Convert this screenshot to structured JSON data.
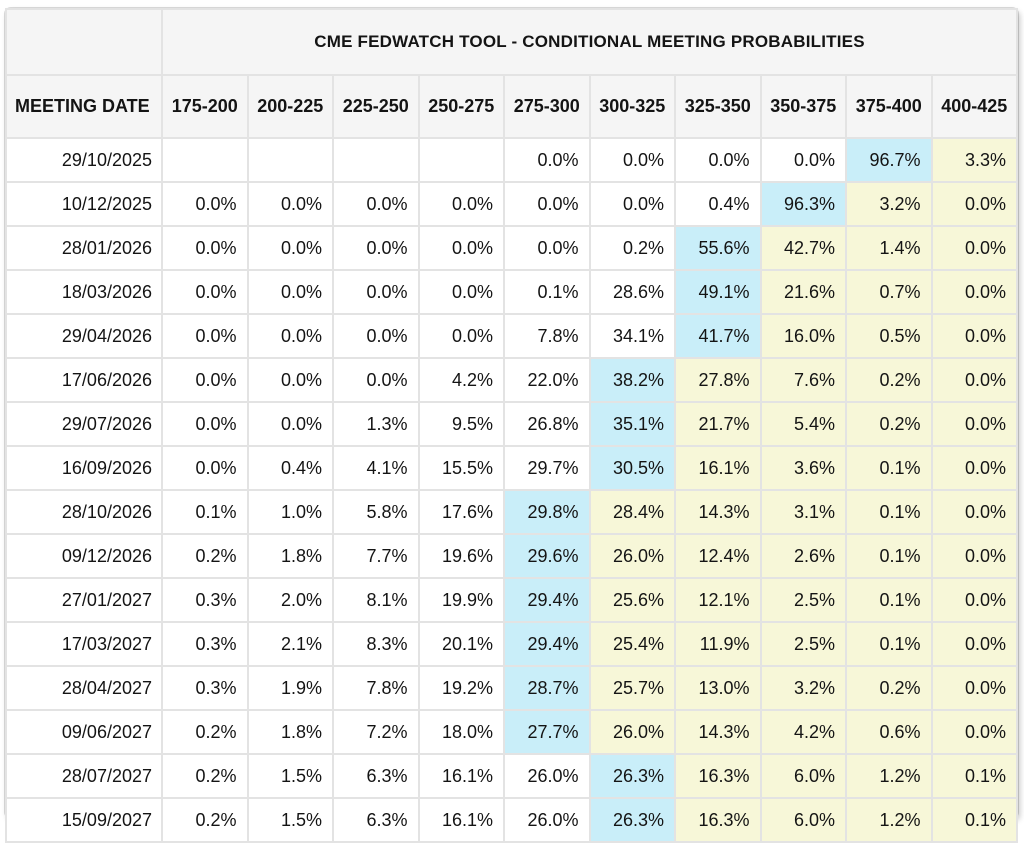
{
  "colors": {
    "header_bg": "#f5f5f5",
    "cell_bg": "#ffffff",
    "highlight_blue": "#c9eef9",
    "highlight_yellow": "#f7f7d8",
    "border": "#e3e3e3",
    "text": "#141414"
  },
  "chart_data": {
    "type": "table",
    "title": "CME FEDWATCH TOOL - CONDITIONAL MEETING PROBABILITIES",
    "date_column_header": "MEETING DATE",
    "rate_bin_headers": [
      "175-200",
      "200-225",
      "225-250",
      "250-275",
      "275-300",
      "300-325",
      "325-350",
      "350-375",
      "375-400",
      "400-425"
    ],
    "highlight_key": {
      "b": "blue",
      "y": "yellow",
      "": "none"
    },
    "rows": [
      {
        "date": "29/10/2025",
        "values": [
          "",
          "",
          "",
          "",
          "0.0%",
          "0.0%",
          "0.0%",
          "0.0%",
          "96.7%",
          "3.3%"
        ],
        "styles": [
          "",
          "",
          "",
          "",
          "",
          "",
          "",
          "",
          "b",
          "y"
        ]
      },
      {
        "date": "10/12/2025",
        "values": [
          "0.0%",
          "0.0%",
          "0.0%",
          "0.0%",
          "0.0%",
          "0.0%",
          "0.4%",
          "96.3%",
          "3.2%",
          "0.0%"
        ],
        "styles": [
          "",
          "",
          "",
          "",
          "",
          "",
          "",
          "b",
          "y",
          "y"
        ]
      },
      {
        "date": "28/01/2026",
        "values": [
          "0.0%",
          "0.0%",
          "0.0%",
          "0.0%",
          "0.0%",
          "0.2%",
          "55.6%",
          "42.7%",
          "1.4%",
          "0.0%"
        ],
        "styles": [
          "",
          "",
          "",
          "",
          "",
          "",
          "b",
          "y",
          "y",
          "y"
        ]
      },
      {
        "date": "18/03/2026",
        "values": [
          "0.0%",
          "0.0%",
          "0.0%",
          "0.0%",
          "0.1%",
          "28.6%",
          "49.1%",
          "21.6%",
          "0.7%",
          "0.0%"
        ],
        "styles": [
          "",
          "",
          "",
          "",
          "",
          "",
          "b",
          "y",
          "y",
          "y"
        ]
      },
      {
        "date": "29/04/2026",
        "values": [
          "0.0%",
          "0.0%",
          "0.0%",
          "0.0%",
          "7.8%",
          "34.1%",
          "41.7%",
          "16.0%",
          "0.5%",
          "0.0%"
        ],
        "styles": [
          "",
          "",
          "",
          "",
          "",
          "",
          "b",
          "y",
          "y",
          "y"
        ]
      },
      {
        "date": "17/06/2026",
        "values": [
          "0.0%",
          "0.0%",
          "0.0%",
          "4.2%",
          "22.0%",
          "38.2%",
          "27.8%",
          "7.6%",
          "0.2%",
          "0.0%"
        ],
        "styles": [
          "",
          "",
          "",
          "",
          "",
          "b",
          "y",
          "y",
          "y",
          "y"
        ]
      },
      {
        "date": "29/07/2026",
        "values": [
          "0.0%",
          "0.0%",
          "1.3%",
          "9.5%",
          "26.8%",
          "35.1%",
          "21.7%",
          "5.4%",
          "0.2%",
          "0.0%"
        ],
        "styles": [
          "",
          "",
          "",
          "",
          "",
          "b",
          "y",
          "y",
          "y",
          "y"
        ]
      },
      {
        "date": "16/09/2026",
        "values": [
          "0.0%",
          "0.4%",
          "4.1%",
          "15.5%",
          "29.7%",
          "30.5%",
          "16.1%",
          "3.6%",
          "0.1%",
          "0.0%"
        ],
        "styles": [
          "",
          "",
          "",
          "",
          "",
          "b",
          "y",
          "y",
          "y",
          "y"
        ]
      },
      {
        "date": "28/10/2026",
        "values": [
          "0.1%",
          "1.0%",
          "5.8%",
          "17.6%",
          "29.8%",
          "28.4%",
          "14.3%",
          "3.1%",
          "0.1%",
          "0.0%"
        ],
        "styles": [
          "",
          "",
          "",
          "",
          "b",
          "y",
          "y",
          "y",
          "y",
          "y"
        ]
      },
      {
        "date": "09/12/2026",
        "values": [
          "0.2%",
          "1.8%",
          "7.7%",
          "19.6%",
          "29.6%",
          "26.0%",
          "12.4%",
          "2.6%",
          "0.1%",
          "0.0%"
        ],
        "styles": [
          "",
          "",
          "",
          "",
          "b",
          "y",
          "y",
          "y",
          "y",
          "y"
        ]
      },
      {
        "date": "27/01/2027",
        "values": [
          "0.3%",
          "2.0%",
          "8.1%",
          "19.9%",
          "29.4%",
          "25.6%",
          "12.1%",
          "2.5%",
          "0.1%",
          "0.0%"
        ],
        "styles": [
          "",
          "",
          "",
          "",
          "b",
          "y",
          "y",
          "y",
          "y",
          "y"
        ]
      },
      {
        "date": "17/03/2027",
        "values": [
          "0.3%",
          "2.1%",
          "8.3%",
          "20.1%",
          "29.4%",
          "25.4%",
          "11.9%",
          "2.5%",
          "0.1%",
          "0.0%"
        ],
        "styles": [
          "",
          "",
          "",
          "",
          "b",
          "y",
          "y",
          "y",
          "y",
          "y"
        ]
      },
      {
        "date": "28/04/2027",
        "values": [
          "0.3%",
          "1.9%",
          "7.8%",
          "19.2%",
          "28.7%",
          "25.7%",
          "13.0%",
          "3.2%",
          "0.2%",
          "0.0%"
        ],
        "styles": [
          "",
          "",
          "",
          "",
          "b",
          "y",
          "y",
          "y",
          "y",
          "y"
        ]
      },
      {
        "date": "09/06/2027",
        "values": [
          "0.2%",
          "1.8%",
          "7.2%",
          "18.0%",
          "27.7%",
          "26.0%",
          "14.3%",
          "4.2%",
          "0.6%",
          "0.0%"
        ],
        "styles": [
          "",
          "",
          "",
          "",
          "b",
          "y",
          "y",
          "y",
          "y",
          "y"
        ]
      },
      {
        "date": "28/07/2027",
        "values": [
          "0.2%",
          "1.5%",
          "6.3%",
          "16.1%",
          "26.0%",
          "26.3%",
          "16.3%",
          "6.0%",
          "1.2%",
          "0.1%"
        ],
        "styles": [
          "",
          "",
          "",
          "",
          "",
          "b",
          "y",
          "y",
          "y",
          "y"
        ]
      },
      {
        "date": "15/09/2027",
        "values": [
          "0.2%",
          "1.5%",
          "6.3%",
          "16.1%",
          "26.0%",
          "26.3%",
          "16.3%",
          "6.0%",
          "1.2%",
          "0.1%"
        ],
        "styles": [
          "",
          "",
          "",
          "",
          "",
          "b",
          "y",
          "y",
          "y",
          "y"
        ]
      }
    ]
  }
}
